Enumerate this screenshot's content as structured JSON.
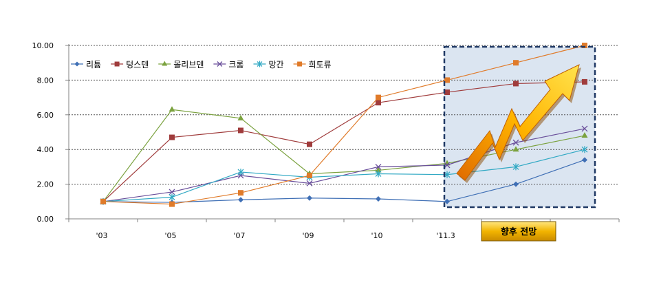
{
  "chart_data": {
    "type": "line",
    "title": "",
    "xlabel": "",
    "ylabel": "",
    "categories": [
      "'03",
      "'05",
      "'07",
      "'09",
      "'10",
      "'11.3",
      "",
      ""
    ],
    "ylim": [
      0,
      10
    ],
    "yticks": [
      "0.00",
      "2.00",
      "4.00",
      "6.00",
      "8.00",
      "10.00"
    ],
    "grid": "horizontal dashed",
    "legend_position": "top-left",
    "forecast_label": "향후 전망",
    "series": [
      {
        "name": "리튬",
        "color": "#3f6fb5",
        "marker": "diamond",
        "values": [
          1.0,
          0.95,
          1.1,
          1.2,
          1.15,
          1.0,
          2.0,
          3.4
        ]
      },
      {
        "name": "텅스텐",
        "color": "#a03c3c",
        "marker": "square",
        "values": [
          1.0,
          4.7,
          5.1,
          4.3,
          6.7,
          7.3,
          7.8,
          7.9
        ]
      },
      {
        "name": "몰리브덴",
        "color": "#7ba23f",
        "marker": "triangle",
        "values": [
          1.0,
          6.3,
          5.8,
          2.6,
          2.8,
          3.2,
          4.0,
          4.8
        ]
      },
      {
        "name": "크롬",
        "color": "#6a4f9b",
        "marker": "x",
        "values": [
          1.0,
          1.55,
          2.5,
          2.05,
          3.0,
          3.1,
          4.4,
          5.2
        ]
      },
      {
        "name": "망간",
        "color": "#31a9c4",
        "marker": "star",
        "values": [
          1.0,
          1.25,
          2.7,
          2.4,
          2.6,
          2.55,
          3.0,
          4.0
        ]
      },
      {
        "name": "희토류",
        "color": "#e07b2a",
        "marker": "square",
        "values": [
          1.0,
          0.85,
          1.5,
          2.5,
          7.0,
          8.0,
          9.0,
          10.0
        ]
      }
    ]
  }
}
